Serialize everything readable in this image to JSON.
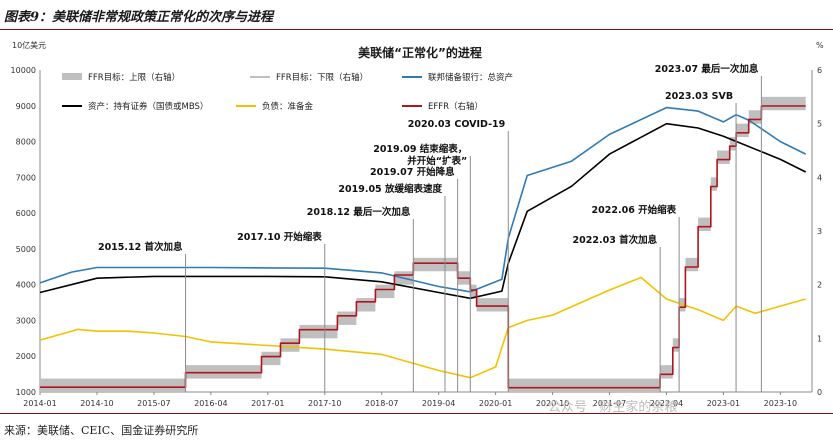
{
  "figure_title": "图表9：美联储非常规政策正常化的次序与进程",
  "source": "来源：美联储、CEIC、国金证券研究所",
  "watermark": "公众号 · 财主家的余粮",
  "colors": {
    "ffr_band": "#bfbfbf",
    "total_assets": "#2e7bb5",
    "securities": "#000000",
    "reserves": "#f2c200",
    "effr": "#b0141c",
    "annotation_line": "#8c8c8c",
    "rule": "#7a1020"
  },
  "chart_data": {
    "type": "line",
    "title": "美联储“正常化”的进程",
    "left_axis_unit": "10亿美元",
    "right_axis_unit": "%",
    "ylim_left": [
      1000,
      10000
    ],
    "ylim_right": [
      0,
      6
    ],
    "left_ticks": [
      1000,
      2000,
      3000,
      4000,
      5000,
      6000,
      7000,
      8000,
      9000,
      10000
    ],
    "right_ticks": [
      0,
      1,
      2,
      3,
      4,
      5,
      6
    ],
    "x_tick_labels": [
      "2014-01",
      "2014-10",
      "2015-07",
      "2016-04",
      "2017-01",
      "2017-10",
      "2018-07",
      "2019-04",
      "2020-01",
      "2020-10",
      "2021-07",
      "2022-04",
      "2023-01",
      "2023-10"
    ],
    "legend": [
      {
        "key": "ffr_band",
        "label": "FFR目标：上限（右轴）"
      },
      {
        "key": "ffr_lower",
        "label": "FFR目标：下限（右轴）"
      },
      {
        "key": "total_assets",
        "label": "联邦储备银行：总资产"
      },
      {
        "key": "securities",
        "label": "资产：持有证券（国债或MBS）"
      },
      {
        "key": "reserves",
        "label": "负债：准备金"
      },
      {
        "key": "effr",
        "label": "EFFR（右轴）"
      }
    ],
    "series": [
      {
        "name": "联邦储备银行：总资产",
        "axis": "left",
        "x": [
          "2014-01",
          "2014-06",
          "2014-10",
          "2015-07",
          "2016-04",
          "2017-01",
          "2017-10",
          "2018-07",
          "2019-04",
          "2019-09",
          "2020-02",
          "2020-03",
          "2020-06",
          "2021-01",
          "2021-07",
          "2022-04",
          "2022-09",
          "2023-01",
          "2023-03",
          "2023-05",
          "2023-10",
          "2024-02"
        ],
        "values": [
          4050,
          4350,
          4480,
          4480,
          4480,
          4470,
          4460,
          4330,
          3950,
          3800,
          4150,
          5300,
          7050,
          7450,
          8200,
          8950,
          8850,
          8550,
          8750,
          8600,
          8000,
          7650
        ]
      },
      {
        "name": "资产：持有证券（国债或MBS）",
        "axis": "left",
        "x": [
          "2014-01",
          "2014-10",
          "2015-07",
          "2016-04",
          "2017-01",
          "2017-10",
          "2018-07",
          "2019-04",
          "2019-09",
          "2020-02",
          "2020-03",
          "2020-06",
          "2021-01",
          "2021-07",
          "2022-04",
          "2022-09",
          "2023-01",
          "2023-10",
          "2024-02"
        ],
        "values": [
          3780,
          4180,
          4230,
          4230,
          4230,
          4220,
          4080,
          3780,
          3620,
          3820,
          4600,
          6050,
          6750,
          7650,
          8500,
          8380,
          8150,
          7500,
          7150
        ]
      },
      {
        "name": "负债：准备金",
        "axis": "left",
        "x": [
          "2014-01",
          "2014-07",
          "2014-10",
          "2015-03",
          "2015-07",
          "2015-12",
          "2016-04",
          "2017-01",
          "2017-10",
          "2018-07",
          "2019-04",
          "2019-09",
          "2020-01",
          "2020-03",
          "2020-06",
          "2020-10",
          "2021-07",
          "2021-12",
          "2022-04",
          "2022-09",
          "2023-01",
          "2023-03",
          "2023-06",
          "2023-10",
          "2024-02"
        ],
        "values": [
          2450,
          2750,
          2700,
          2700,
          2650,
          2550,
          2400,
          2300,
          2200,
          2050,
          1600,
          1400,
          1700,
          2800,
          3000,
          3150,
          3850,
          4200,
          3600,
          3300,
          3000,
          3400,
          3200,
          3400,
          3600
        ]
      },
      {
        "name": "EFFR（右轴）",
        "axis": "right",
        "step": true,
        "x": [
          "2014-01",
          "2015-12",
          "2016-12",
          "2017-03",
          "2017-06",
          "2017-12",
          "2018-03",
          "2018-06",
          "2018-09",
          "2018-12",
          "2019-07",
          "2019-09",
          "2019-10",
          "2020-03",
          "2022-03",
          "2022-05",
          "2022-06",
          "2022-07",
          "2022-09",
          "2022-11",
          "2022-12",
          "2023-02",
          "2023-03",
          "2023-05",
          "2023-07",
          "2024-02"
        ],
        "values": [
          0.09,
          0.36,
          0.66,
          0.91,
          1.16,
          1.42,
          1.68,
          1.91,
          2.18,
          2.4,
          2.12,
          1.9,
          1.6,
          0.08,
          0.33,
          0.83,
          1.58,
          2.33,
          3.08,
          3.83,
          4.33,
          4.58,
          4.83,
          5.08,
          5.33,
          5.33
        ]
      },
      {
        "name": "FFR目标：上限（右轴）",
        "axis": "right",
        "step": true,
        "band": true,
        "x": [
          "2014-01",
          "2015-12",
          "2016-12",
          "2017-03",
          "2017-06",
          "2017-12",
          "2018-03",
          "2018-06",
          "2018-09",
          "2018-12",
          "2019-07",
          "2019-09",
          "2019-10",
          "2020-03",
          "2022-03",
          "2022-05",
          "2022-06",
          "2022-07",
          "2022-09",
          "2022-11",
          "2022-12",
          "2023-02",
          "2023-03",
          "2023-05",
          "2023-07",
          "2024-02"
        ],
        "values": [
          0.25,
          0.5,
          0.75,
          1.0,
          1.25,
          1.5,
          1.75,
          2.0,
          2.25,
          2.5,
          2.25,
          2.0,
          1.75,
          0.25,
          0.5,
          1.0,
          1.75,
          2.5,
          3.25,
          4.0,
          4.5,
          4.75,
          5.0,
          5.25,
          5.5,
          5.5
        ]
      },
      {
        "name": "FFR目标：下限（右轴）",
        "axis": "right",
        "step": true,
        "band": true,
        "x": [
          "2014-01",
          "2015-12",
          "2016-12",
          "2017-03",
          "2017-06",
          "2017-12",
          "2018-03",
          "2018-06",
          "2018-09",
          "2018-12",
          "2019-07",
          "2019-09",
          "2019-10",
          "2020-03",
          "2022-03",
          "2022-05",
          "2022-06",
          "2022-07",
          "2022-09",
          "2022-11",
          "2022-12",
          "2023-02",
          "2023-03",
          "2023-05",
          "2023-07",
          "2024-02"
        ],
        "values": [
          0.0,
          0.25,
          0.5,
          0.75,
          1.0,
          1.25,
          1.5,
          1.75,
          2.0,
          2.25,
          2.0,
          1.75,
          1.5,
          0.0,
          0.25,
          0.75,
          1.5,
          2.25,
          3.0,
          3.75,
          4.25,
          4.5,
          4.75,
          5.0,
          5.25,
          5.25
        ]
      }
    ],
    "annotations": [
      {
        "text": "2015.12 首次加息",
        "date": "2015-12"
      },
      {
        "text": "2017.10 开始缩表",
        "date": "2017-10"
      },
      {
        "text": "2018.12 最后一次加息",
        "date": "2018-12"
      },
      {
        "text": "2019.05 放缓缩表速度",
        "date": "2019-05"
      },
      {
        "text": "2019.07 开始降息",
        "date": "2019-07"
      },
      {
        "text": "2019.09 结束缩表，",
        "text2": "并开始“扩表”",
        "date": "2019-09"
      },
      {
        "text": "2020.03 COVID-19",
        "date": "2020-03"
      },
      {
        "text": "2022.03 首次加息",
        "date": "2022-03"
      },
      {
        "text": "2022.06 开始缩表",
        "date": "2022-06"
      },
      {
        "text": "2023.03 SVB",
        "date": "2023-03"
      },
      {
        "text": "2023.07 最后一次加息",
        "date": "2023-07"
      }
    ]
  }
}
